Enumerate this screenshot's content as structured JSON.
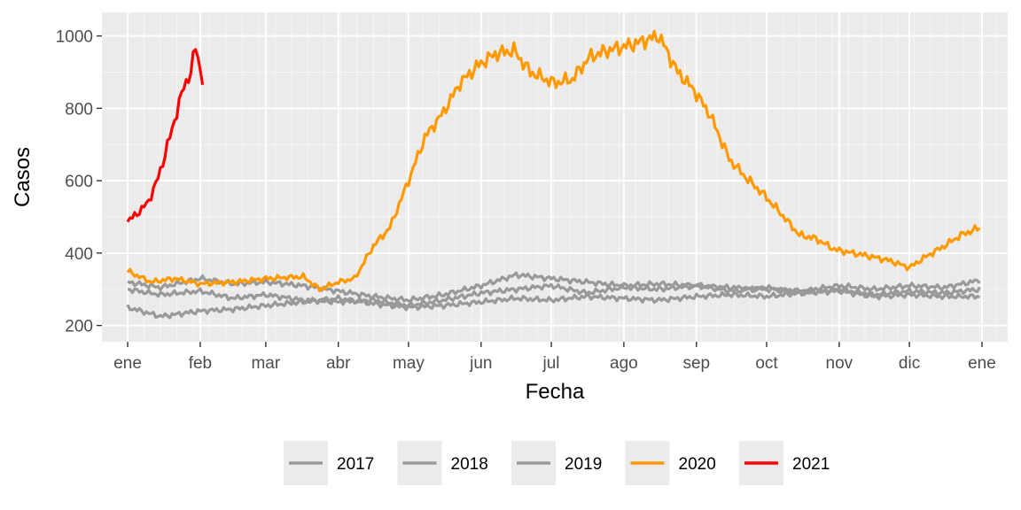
{
  "chart_data": {
    "type": "line",
    "xlabel": "Fecha",
    "ylabel": "Casos",
    "x_ticks": [
      "ene",
      "feb",
      "mar",
      "abr",
      "may",
      "jun",
      "jul",
      "ago",
      "sep",
      "oct",
      "nov",
      "dic",
      "ene"
    ],
    "y_ticks": [
      200,
      400,
      600,
      800,
      1000
    ],
    "ylim": [
      155,
      1065
    ],
    "x_unit": "day of year",
    "xlim": [
      -11,
      376
    ],
    "grid": true,
    "legend_position": "bottom",
    "series": [
      {
        "name": "2017",
        "color": "#999999",
        "x": [
          0,
          14,
          31,
          45,
          59,
          75,
          90,
          105,
          120,
          135,
          151,
          166,
          181,
          196,
          212,
          227,
          243,
          258,
          273,
          288,
          304,
          319,
          334,
          349,
          364
        ],
        "y": [
          300,
          285,
          295,
          275,
          285,
          270,
          265,
          270,
          255,
          270,
          290,
          300,
          310,
          290,
          305,
          300,
          310,
          295,
          305,
          290,
          300,
          285,
          295,
          290,
          300
        ]
      },
      {
        "name": "2018",
        "color": "#999999",
        "x": [
          0,
          14,
          31,
          45,
          59,
          75,
          90,
          105,
          120,
          135,
          151,
          166,
          181,
          196,
          212,
          227,
          243,
          258,
          273,
          288,
          304,
          319,
          334,
          349,
          364
        ],
        "y": [
          250,
          225,
          240,
          245,
          255,
          265,
          275,
          260,
          250,
          255,
          265,
          275,
          270,
          280,
          275,
          270,
          280,
          285,
          280,
          290,
          295,
          280,
          285,
          280,
          280
        ]
      },
      {
        "name": "2019",
        "color": "#999999",
        "x": [
          0,
          14,
          31,
          45,
          59,
          75,
          90,
          105,
          120,
          135,
          151,
          166,
          181,
          196,
          212,
          227,
          243,
          258,
          273,
          288,
          304,
          319,
          334,
          349,
          364
        ],
        "y": [
          320,
          305,
          330,
          315,
          320,
          310,
          295,
          280,
          270,
          285,
          310,
          340,
          330,
          320,
          310,
          315,
          310,
          305,
          300,
          295,
          310,
          300,
          310,
          305,
          325
        ]
      },
      {
        "name": "2020",
        "color": "#ff9900",
        "x": [
          0,
          10,
          20,
          31,
          45,
          60,
          75,
          82,
          90,
          97,
          105,
          112,
          120,
          127,
          135,
          142,
          150,
          157,
          165,
          172,
          182,
          190,
          197,
          205,
          212,
          220,
          227,
          235,
          242,
          249,
          257,
          264,
          272,
          279,
          287,
          294,
          302,
          310,
          318,
          325,
          334,
          341,
          349,
          356,
          364
        ],
        "y": [
          350,
          320,
          330,
          315,
          320,
          330,
          335,
          300,
          320,
          330,
          420,
          470,
          600,
          720,
          790,
          870,
          920,
          950,
          960,
          900,
          870,
          880,
          940,
          960,
          970,
          985,
          1000,
          900,
          850,
          780,
          660,
          610,
          560,
          510,
          450,
          440,
          410,
          400,
          390,
          380,
          360,
          390,
          420,
          450,
          470
        ]
      },
      {
        "name": "2021",
        "color": "#ff0000",
        "x": [
          0,
          3,
          6,
          9,
          12,
          15,
          18,
          21,
          24,
          27,
          29,
          32
        ],
        "y": [
          485,
          505,
          520,
          545,
          590,
          650,
          720,
          790,
          860,
          900,
          970,
          880
        ]
      }
    ]
  }
}
